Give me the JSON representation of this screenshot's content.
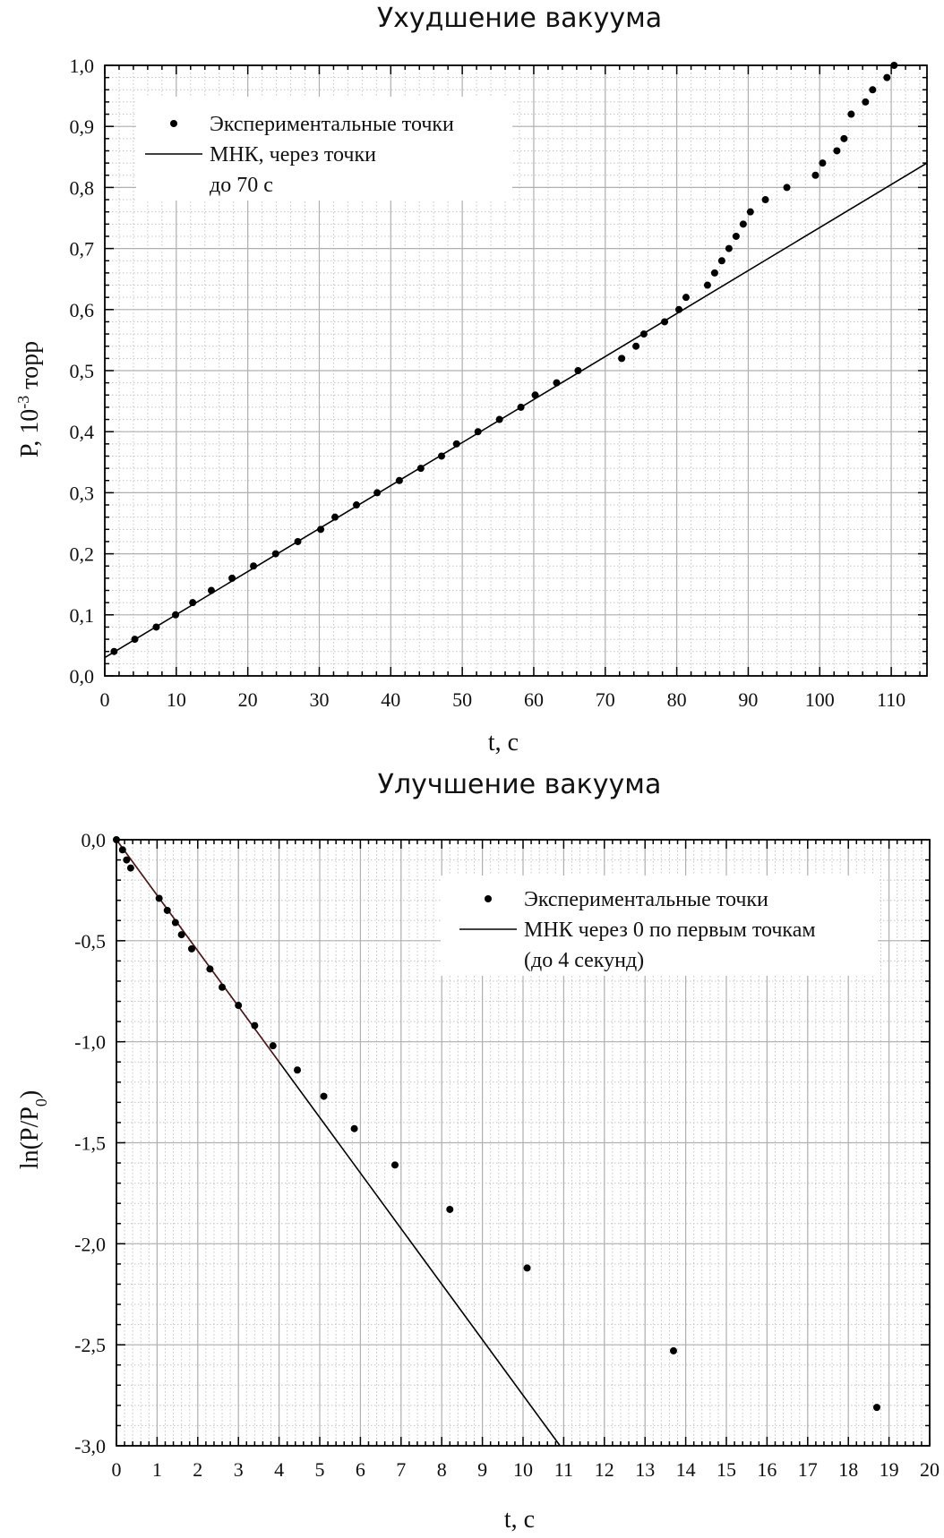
{
  "chart_data": [
    {
      "type": "scatter",
      "title": "Ухудшение вакуума",
      "xlabel": "t, c",
      "ylabel_main": "P, 10",
      "ylabel_sup": "-3",
      "ylabel_unit": " торр",
      "xlim": [
        0,
        115
      ],
      "ylim": [
        0,
        1.0
      ],
      "grid": true,
      "legend_placement": "top-left",
      "x_ticks": [
        "0",
        "10",
        "20",
        "30",
        "40",
        "50",
        "60",
        "70",
        "80",
        "90",
        "100",
        "110"
      ],
      "y_ticks": [
        "0,0",
        "0,1",
        "0,2",
        "0,3",
        "0,4",
        "0,5",
        "0,6",
        "0,7",
        "0,8",
        "0,9",
        "1,0"
      ],
      "legend": {
        "points_label": "Экспериментальные точки",
        "line_label_1": "МНК, через точки",
        "line_label_2": "до 70 с"
      },
      "series": [
        {
          "kind": "points",
          "x": [
            1.3,
            4.2,
            7.2,
            9.9,
            12.3,
            14.9,
            17.8,
            20.8,
            23.9,
            27,
            30.2,
            32.2,
            35.2,
            38.1,
            41.2,
            44.2,
            47.1,
            49.2,
            52.2,
            55.2,
            58.2,
            60.2,
            63.2,
            66.2,
            72.3,
            74.3,
            75.4,
            78.3,
            80.3,
            81.3,
            84.3,
            85.3,
            86.3,
            87.3,
            88.3,
            89.3,
            90.3,
            92.4,
            95.4,
            99.4,
            100.4,
            102.4,
            103.4,
            104.4,
            106.4,
            107.4,
            109.4,
            110.4
          ],
          "y": [
            0.04,
            0.06,
            0.08,
            0.1,
            0.12,
            0.14,
            0.16,
            0.18,
            0.2,
            0.22,
            0.24,
            0.26,
            0.28,
            0.3,
            0.32,
            0.34,
            0.36,
            0.38,
            0.4,
            0.42,
            0.44,
            0.46,
            0.48,
            0.5,
            0.52,
            0.54,
            0.56,
            0.58,
            0.6,
            0.62,
            0.64,
            0.66,
            0.68,
            0.7,
            0.72,
            0.74,
            0.76,
            0.78,
            0.8,
            0.82,
            0.84,
            0.86,
            0.88,
            0.92,
            0.94,
            0.96,
            0.98,
            1.0
          ]
        },
        {
          "kind": "line",
          "x": [
            0,
            115
          ],
          "y": [
            0.03,
            0.84
          ]
        }
      ]
    },
    {
      "type": "scatter",
      "title": "Улучшение вакуума",
      "xlabel": "t, c",
      "ylabel_main": "ln(P/P",
      "ylabel_sub": "0",
      "ylabel_close": ")",
      "xlim": [
        0,
        20
      ],
      "ylim": [
        -3.0,
        0.0
      ],
      "grid": true,
      "legend_placement": "top-right",
      "x_ticks": [
        "0",
        "1",
        "2",
        "3",
        "4",
        "5",
        "6",
        "7",
        "8",
        "9",
        "10",
        "11",
        "12",
        "13",
        "14",
        "15",
        "16",
        "17",
        "18",
        "19",
        "20"
      ],
      "y_ticks": [
        "-3,0",
        "-2,5",
        "-2,0",
        "-1,5",
        "-1,0",
        "-0,5",
        "0,0"
      ],
      "legend": {
        "points_label": "Экспериментальные точки",
        "line_label_1": "МНК через 0 по первым точкам",
        "line_label_2": "(до 4 секунд)"
      },
      "series": [
        {
          "kind": "points",
          "x": [
            0.0,
            0.15,
            0.25,
            0.35,
            1.05,
            1.25,
            1.45,
            1.6,
            1.85,
            2.3,
            2.6,
            3.0,
            3.4,
            3.85,
            4.45,
            5.1,
            5.85,
            6.85,
            8.2,
            10.1,
            13.7,
            18.7
          ],
          "y": [
            0.0,
            -0.05,
            -0.1,
            -0.14,
            -0.29,
            -0.35,
            -0.41,
            -0.47,
            -0.54,
            -0.64,
            -0.73,
            -0.82,
            -0.92,
            -1.02,
            -1.14,
            -1.27,
            -1.43,
            -1.61,
            -1.83,
            -2.12,
            -2.53,
            -2.81
          ]
        },
        {
          "kind": "line",
          "x": [
            0,
            10.91
          ],
          "y": [
            0,
            -3.0
          ]
        }
      ]
    }
  ]
}
